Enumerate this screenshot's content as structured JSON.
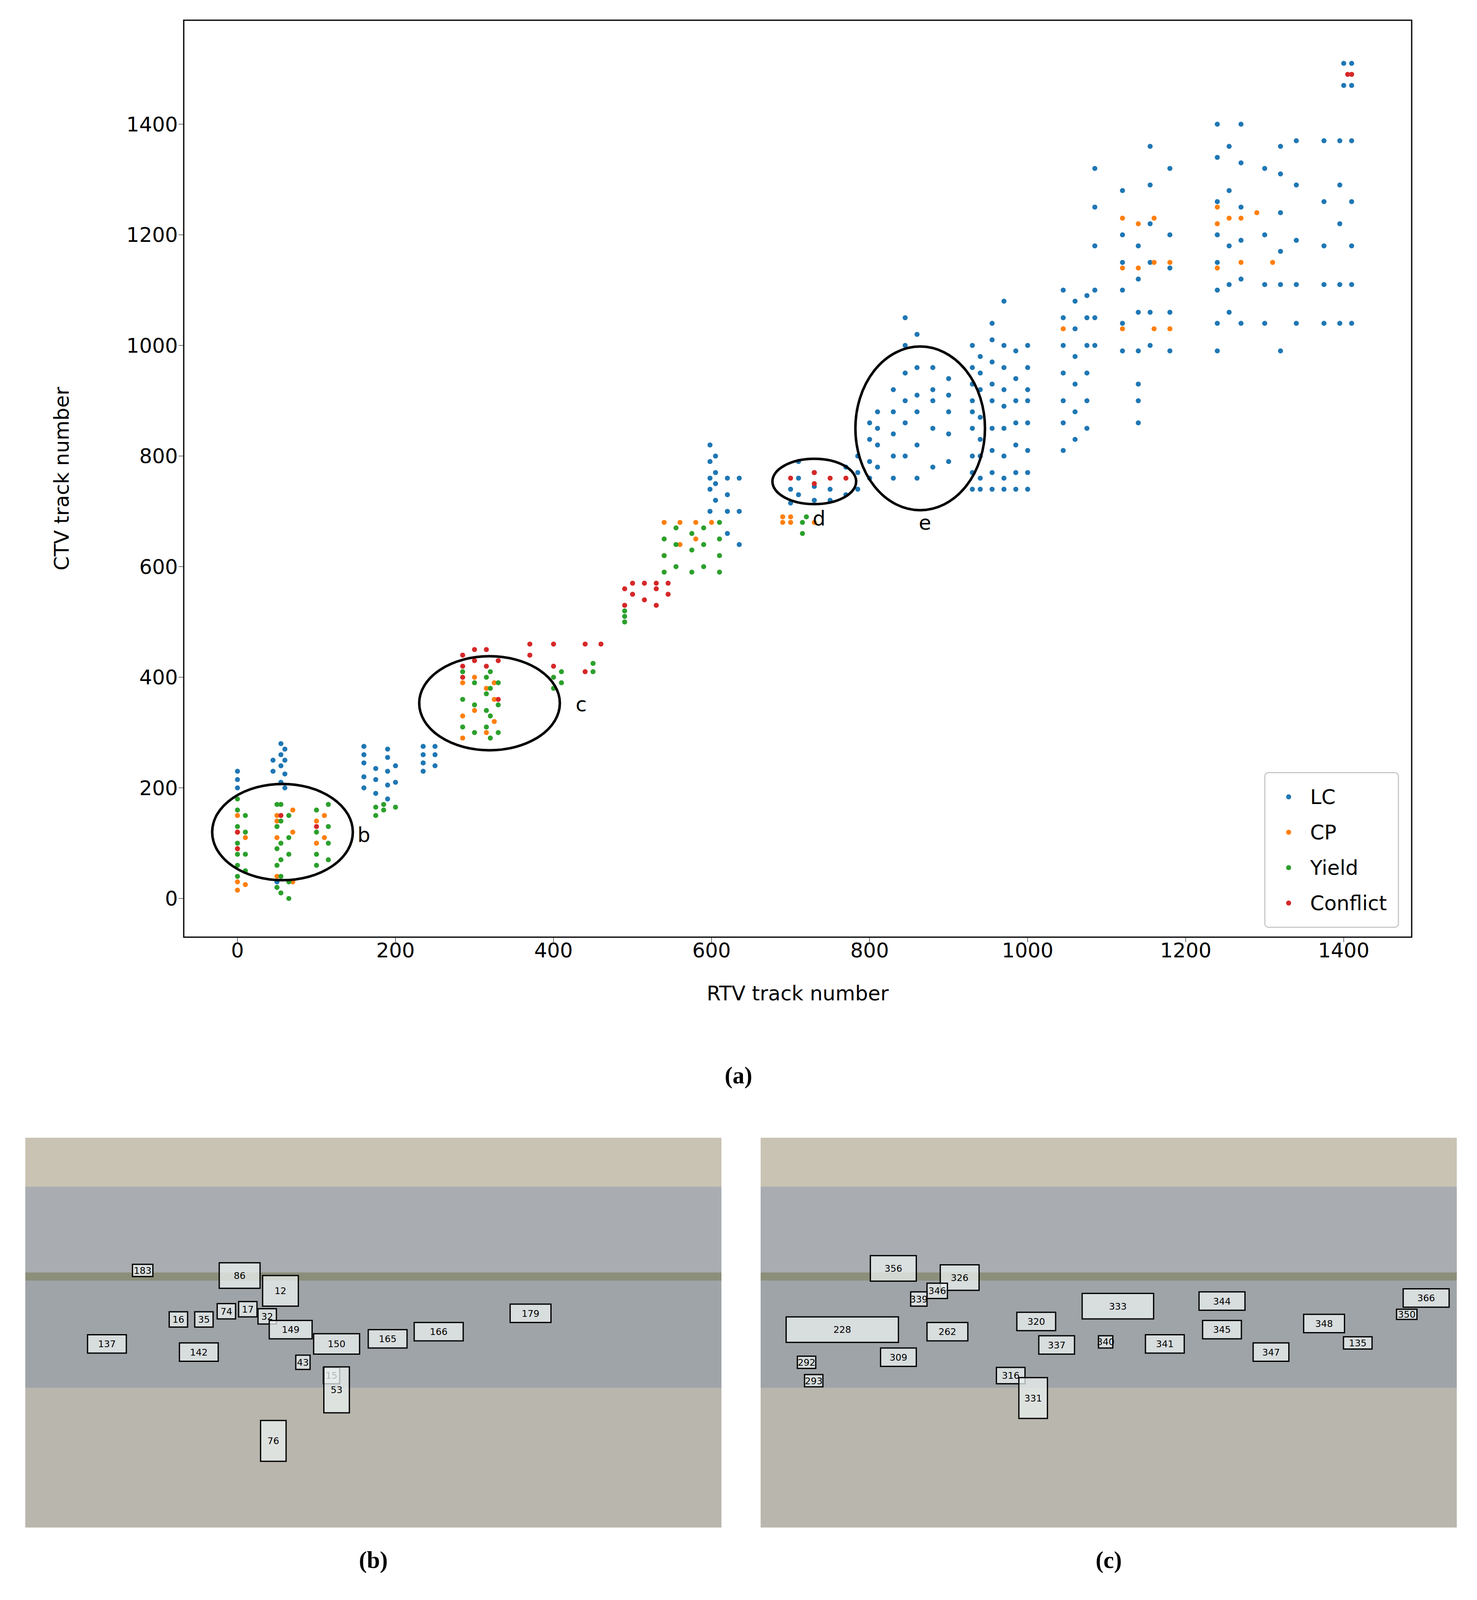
{
  "chart_data": {
    "type": "scatter",
    "x_label": "RTV track number",
    "y_label": "CTV track number",
    "xlim": [
      -68,
      1486
    ],
    "ylim": [
      -70,
      1588
    ],
    "xticks": [
      0,
      200,
      400,
      600,
      800,
      1000,
      1200,
      1400
    ],
    "yticks": [
      0,
      200,
      400,
      600,
      800,
      1000,
      1200,
      1400
    ],
    "legend": "lower right",
    "grid": false,
    "marker": "circle",
    "series": [
      {
        "name": "LC",
        "color": "#1f77b4",
        "x": [
          0,
          0,
          0,
          45,
          45,
          55,
          55,
          55,
          55,
          60,
          60,
          60,
          60,
          50,
          50,
          160,
          160,
          160,
          160,
          160,
          175,
          175,
          175,
          190,
          190,
          190,
          190,
          190,
          200,
          200,
          235,
          235,
          235,
          235,
          250,
          250,
          250,
          598,
          598,
          598,
          598,
          598,
          605,
          605,
          605,
          605,
          620,
          620,
          620,
          620,
          635,
          635,
          635,
          700,
          700,
          710,
          710,
          710,
          730,
          730,
          730,
          750,
          750,
          770,
          770,
          785,
          785,
          785,
          800,
          800,
          800,
          800,
          810,
          810,
          810,
          810,
          830,
          830,
          830,
          830,
          830,
          845,
          845,
          845,
          845,
          845,
          845,
          860,
          860,
          860,
          860,
          860,
          860,
          880,
          880,
          880,
          880,
          880,
          900,
          900,
          900,
          900,
          900,
          930,
          930,
          930,
          930,
          930,
          930,
          930,
          930,
          930,
          940,
          940,
          940,
          940,
          940,
          940,
          940,
          940,
          955,
          955,
          955,
          955,
          955,
          955,
          955,
          955,
          955,
          970,
          970,
          970,
          970,
          970,
          970,
          970,
          970,
          970,
          985,
          985,
          985,
          985,
          985,
          985,
          985,
          1000,
          1000,
          1000,
          1000,
          1000,
          1000,
          1000,
          1000,
          1045,
          1045,
          1045,
          1045,
          1045,
          1045,
          1045,
          1060,
          1060,
          1060,
          1060,
          1060,
          1060,
          1075,
          1075,
          1075,
          1075,
          1075,
          1075,
          1085,
          1085,
          1085,
          1085,
          1085,
          1085,
          1120,
          1120,
          1120,
          1120,
          1120,
          1120,
          1140,
          1140,
          1140,
          1140,
          1140,
          1140,
          1140,
          1155,
          1155,
          1155,
          1155,
          1155,
          1155,
          1180,
          1180,
          1180,
          1180,
          1180,
          1240,
          1240,
          1240,
          1240,
          1240,
          1240,
          1240,
          1240,
          1255,
          1255,
          1255,
          1255,
          1255,
          1270,
          1270,
          1270,
          1270,
          1270,
          1270,
          1300,
          1300,
          1300,
          1300,
          1320,
          1320,
          1320,
          1320,
          1320,
          1320,
          1340,
          1340,
          1340,
          1340,
          1340,
          1375,
          1375,
          1375,
          1375,
          1375,
          1395,
          1395,
          1395,
          1395,
          1395,
          1410,
          1410,
          1410,
          1410,
          1410,
          1410,
          1410,
          1400,
          1400
        ],
        "values": [
          200,
          215,
          230,
          230,
          250,
          210,
          240,
          260,
          280,
          200,
          225,
          250,
          270,
          20,
          30,
          200,
          220,
          245,
          260,
          275,
          190,
          215,
          235,
          180,
          205,
          230,
          255,
          270,
          210,
          240,
          230,
          245,
          260,
          275,
          240,
          260,
          275,
          700,
          740,
          760,
          790,
          820,
          720,
          750,
          770,
          800,
          660,
          700,
          730,
          760,
          640,
          700,
          760,
          715,
          740,
          730,
          760,
          790,
          720,
          745,
          770,
          720,
          740,
          730,
          780,
          740,
          770,
          800,
          760,
          790,
          830,
          860,
          780,
          820,
          850,
          880,
          760,
          800,
          840,
          880,
          920,
          800,
          860,
          900,
          950,
          1000,
          1050,
          760,
          820,
          880,
          910,
          960,
          1020,
          780,
          850,
          900,
          920,
          960,
          790,
          840,
          880,
          910,
          940,
          740,
          770,
          800,
          850,
          880,
          900,
          930,
          960,
          1000,
          740,
          760,
          800,
          830,
          870,
          920,
          950,
          980,
          740,
          770,
          810,
          850,
          900,
          930,
          970,
          1010,
          1040,
          740,
          760,
          800,
          850,
          890,
          920,
          960,
          1000,
          1080,
          740,
          770,
          820,
          860,
          900,
          940,
          990,
          740,
          770,
          810,
          860,
          900,
          920,
          960,
          1000,
          810,
          860,
          900,
          950,
          1000,
          1050,
          1100,
          830,
          880,
          930,
          980,
          1030,
          1080,
          850,
          900,
          950,
          1000,
          1050,
          1090,
          1000,
          1050,
          1100,
          1180,
          1250,
          1320,
          990,
          1040,
          1100,
          1150,
          1200,
          1280,
          860,
          900,
          930,
          990,
          1060,
          1120,
          1180,
          1000,
          1060,
          1150,
          1220,
          1290,
          1360,
          990,
          1060,
          1140,
          1200,
          1320,
          990,
          1040,
          1100,
          1150,
          1200,
          1260,
          1340,
          1400,
          1060,
          1110,
          1180,
          1280,
          1360,
          1040,
          1120,
          1190,
          1250,
          1330,
          1400,
          1040,
          1110,
          1200,
          1320,
          990,
          1110,
          1170,
          1240,
          1310,
          1360,
          1040,
          1110,
          1190,
          1290,
          1370,
          1040,
          1110,
          1180,
          1260,
          1370,
          1040,
          1110,
          1220,
          1290,
          1370,
          1040,
          1110,
          1180,
          1260,
          1370,
          1470,
          1510,
          1470,
          1510
        ]
      },
      {
        "name": "CP",
        "color": "#ff7f0e",
        "x": [
          0,
          0,
          0,
          0,
          0,
          10,
          10,
          50,
          50,
          50,
          50,
          70,
          70,
          70,
          100,
          100,
          110,
          110,
          285,
          285,
          285,
          300,
          300,
          315,
          315,
          325,
          325,
          325,
          540,
          540,
          560,
          560,
          580,
          580,
          600,
          690,
          690,
          700,
          700,
          730,
          1045,
          1120,
          1120,
          1120,
          1140,
          1140,
          1160,
          1160,
          1160,
          1180,
          1180,
          1240,
          1240,
          1240,
          1255,
          1270,
          1270,
          1290,
          1310
        ],
        "values": [
          15,
          30,
          90,
          120,
          150,
          25,
          110,
          40,
          110,
          140,
          150,
          30,
          120,
          160,
          100,
          140,
          110,
          150,
          290,
          330,
          390,
          340,
          400,
          300,
          380,
          320,
          360,
          390,
          620,
          680,
          640,
          680,
          650,
          680,
          680,
          680,
          690,
          690,
          680,
          680,
          1030,
          1030,
          1140,
          1230,
          1140,
          1220,
          1030,
          1150,
          1230,
          1030,
          1150,
          1140,
          1220,
          1250,
          1230,
          1150,
          1230,
          1240,
          1150
        ]
      },
      {
        "name": "Yield",
        "color": "#2ca02c",
        "x": [
          0,
          0,
          0,
          0,
          0,
          0,
          0,
          10,
          10,
          10,
          10,
          50,
          50,
          50,
          50,
          50,
          55,
          55,
          55,
          55,
          55,
          55,
          65,
          65,
          65,
          65,
          65,
          100,
          100,
          100,
          100,
          115,
          115,
          115,
          115,
          175,
          175,
          185,
          185,
          200,
          285,
          285,
          285,
          300,
          300,
          300,
          315,
          315,
          315,
          315,
          320,
          320,
          320,
          320,
          330,
          330,
          330,
          400,
          400,
          410,
          410,
          450,
          450,
          490,
          490,
          490,
          540,
          540,
          540,
          555,
          555,
          555,
          575,
          575,
          575,
          590,
          590,
          590,
          610,
          610,
          610,
          610,
          715,
          715,
          720
        ],
        "values": [
          40,
          60,
          80,
          100,
          130,
          160,
          180,
          50,
          80,
          120,
          150,
          20,
          60,
          90,
          130,
          170,
          10,
          40,
          70,
          100,
          140,
          170,
          0,
          30,
          80,
          110,
          150,
          60,
          80,
          120,
          160,
          70,
          100,
          130,
          170,
          150,
          165,
          160,
          170,
          165,
          310,
          360,
          410,
          300,
          350,
          390,
          310,
          340,
          370,
          400,
          290,
          330,
          380,
          410,
          300,
          350,
          390,
          380,
          400,
          390,
          410,
          410,
          425,
          500,
          510,
          520,
          590,
          620,
          650,
          600,
          640,
          670,
          590,
          630,
          660,
          600,
          640,
          670,
          590,
          620,
          650,
          680,
          660,
          680,
          690
        ]
      },
      {
        "name": "Conflict",
        "color": "#d62728",
        "x": [
          0,
          0,
          55,
          100,
          285,
          285,
          285,
          300,
          300,
          315,
          315,
          330,
          330,
          370,
          370,
          400,
          400,
          440,
          440,
          460,
          490,
          490,
          500,
          500,
          515,
          515,
          530,
          530,
          530,
          545,
          545,
          700,
          730,
          730,
          750,
          770,
          1405,
          1410
        ],
        "values": [
          90,
          120,
          150,
          130,
          400,
          420,
          440,
          430,
          450,
          420,
          450,
          360,
          430,
          440,
          460,
          420,
          460,
          410,
          460,
          460,
          530,
          560,
          550,
          570,
          540,
          570,
          530,
          560,
          570,
          550,
          570,
          760,
          750,
          770,
          760,
          760,
          1490,
          1490
        ]
      }
    ],
    "annotations": [
      {
        "text": "b",
        "x": 160,
        "y": 115,
        "ellipse": {
          "cx": 57,
          "cy": 120,
          "rx": 89,
          "ry": 87
        }
      },
      {
        "text": "c",
        "x": 435,
        "y": 351,
        "ellipse": {
          "cx": 319,
          "cy": 353,
          "rx": 89,
          "ry": 85
        }
      },
      {
        "text": "d",
        "x": 736,
        "y": 687,
        "ellipse": {
          "cx": 730,
          "cy": 754,
          "rx": 53,
          "ry": 41
        }
      },
      {
        "text": "e",
        "x": 870,
        "y": 680,
        "ellipse": {
          "cx": 864,
          "cy": 850,
          "rx": 82,
          "ry": 148
        }
      }
    ]
  },
  "panel_labels": [
    "(a)",
    "(b)",
    "(c)"
  ],
  "photos": [
    {
      "boxes": [
        "183",
        "86",
        "12",
        "16",
        "35",
        "74",
        "17",
        "32",
        "137",
        "142",
        "149",
        "150",
        "165",
        "166",
        "179",
        "43",
        "15",
        "53",
        "76"
      ]
    },
    {
      "boxes": [
        "356",
        "326",
        "346",
        "339",
        "228",
        "262",
        "320",
        "333",
        "344",
        "366",
        "292",
        "293",
        "309",
        "337",
        "340",
        "341",
        "345",
        "348",
        "347",
        "350",
        "135",
        "316",
        "331"
      ]
    }
  ]
}
